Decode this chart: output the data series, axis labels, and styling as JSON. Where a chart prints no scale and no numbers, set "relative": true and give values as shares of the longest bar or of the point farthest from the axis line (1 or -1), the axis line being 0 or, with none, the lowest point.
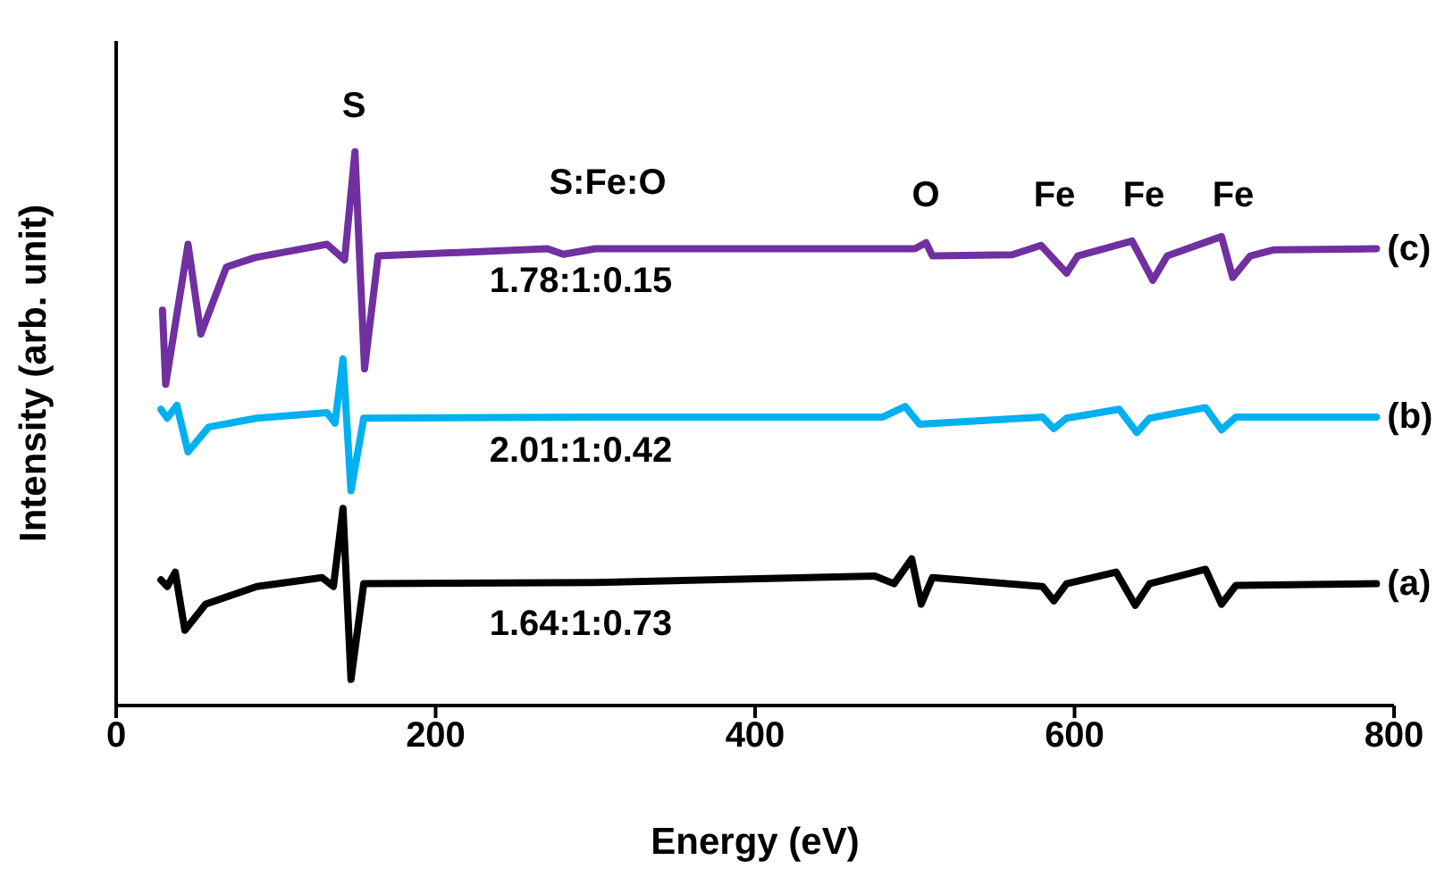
{
  "chart_data": {
    "type": "line",
    "xlabel": "Energy (eV)",
    "ylabel": "Intensity (arb. unit)",
    "relative": true,
    "xlim": [
      0,
      800
    ],
    "xticks": [
      0,
      200,
      400,
      600,
      800
    ],
    "line_style": "solid",
    "marker": "none",
    "series": [
      {
        "name": "(a)",
        "color": "#000000",
        "x": [
          28,
          32,
          37,
          43,
          56,
          88,
          129,
          136,
          142,
          147,
          155,
          300,
          475,
          487,
          498,
          504,
          511,
          580,
          587,
          595,
          626,
          638,
          647,
          682,
          692,
          701,
          789
        ],
        "values": [
          0.227,
          0.215,
          0.241,
          0.136,
          0.183,
          0.215,
          0.231,
          0.215,
          0.356,
          0.047,
          0.22,
          0.222,
          0.234,
          0.22,
          0.265,
          0.183,
          0.231,
          0.215,
          0.189,
          0.22,
          0.241,
          0.181,
          0.22,
          0.246,
          0.183,
          0.217,
          0.22
        ]
      },
      {
        "name": "(b)",
        "color": "#00b0f0",
        "x": [
          28,
          32,
          38,
          45,
          58,
          88,
          132,
          137,
          142,
          147,
          155,
          300,
          480,
          494,
          503,
          580,
          587,
          595,
          628,
          639,
          647,
          682,
          692,
          701,
          789
        ],
        "values": [
          0.535,
          0.519,
          0.542,
          0.458,
          0.503,
          0.519,
          0.529,
          0.51,
          0.626,
          0.388,
          0.519,
          0.521,
          0.521,
          0.54,
          0.508,
          0.521,
          0.5,
          0.519,
          0.535,
          0.493,
          0.519,
          0.538,
          0.498,
          0.521,
          0.521
        ]
      },
      {
        "name": "(c)",
        "color": "#7030a0",
        "x": [
          29,
          31,
          45,
          53,
          69,
          87,
          132,
          143,
          149.5,
          155.5,
          164,
          270,
          280,
          300,
          500,
          507,
          511,
          561,
          579,
          595,
          602,
          636,
          649,
          658,
          692,
          699,
          710,
          725,
          789
        ],
        "values": [
          0.714,
          0.58,
          0.833,
          0.671,
          0.792,
          0.809,
          0.833,
          0.805,
          1,
          0.608,
          0.812,
          0.825,
          0.815,
          0.825,
          0.825,
          0.836,
          0.812,
          0.814,
          0.831,
          0.781,
          0.812,
          0.839,
          0.768,
          0.812,
          0.847,
          0.773,
          0.812,
          0.823,
          0.825
        ]
      }
    ],
    "annotations": [
      "S",
      "S:Fe:O",
      "O",
      "Fe",
      "Fe",
      "Fe",
      "1.78:1:0.15",
      "2.01:1:0.42",
      "1.64:1:0.73"
    ]
  }
}
